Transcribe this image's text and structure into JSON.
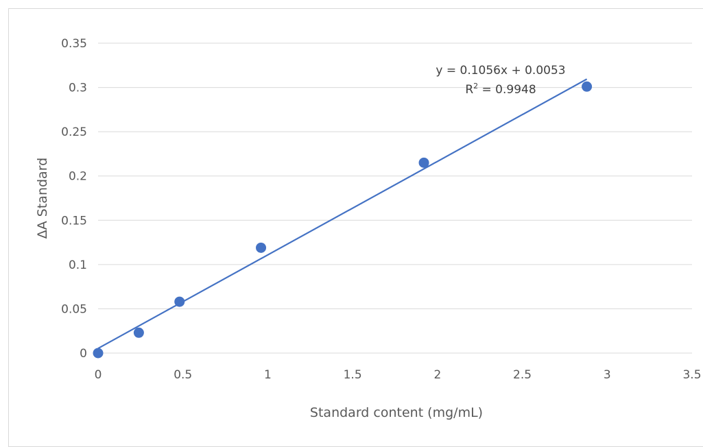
{
  "chart_data": {
    "type": "scatter",
    "title": "",
    "xlabel": "Standard content (mg/mL)",
    "ylabel": "ΔA Standard",
    "xlim": [
      0,
      3.5
    ],
    "ylim": [
      0,
      0.35
    ],
    "x_ticks": [
      "0",
      "0.5",
      "1",
      "1.5",
      "2",
      "2.5",
      "3",
      "3.5"
    ],
    "y_ticks": [
      "0",
      "0.05",
      "0.1",
      "0.15",
      "0.2",
      "0.25",
      "0.3",
      "0.35"
    ],
    "grid": {
      "horizontal": true,
      "vertical": false
    },
    "legend": "none",
    "series": [
      {
        "x": [
          0,
          0.24,
          0.48,
          0.96,
          1.92,
          2.88
        ],
        "y": [
          0.0,
          0.023,
          0.058,
          0.119,
          0.215,
          0.301
        ],
        "color": "#4472C4",
        "marker": "circle"
      }
    ],
    "trendline": {
      "type": "linear",
      "slope": 0.1056,
      "intercept": 0.0053,
      "x_range": [
        0,
        2.88
      ],
      "color": "#4472C4"
    },
    "annotations": {
      "equation": "y = 0.1056x + 0.0053",
      "r_squared_prefix": "R",
      "r_squared_sup": "2",
      "r_squared_value": " = 0.9948"
    }
  }
}
